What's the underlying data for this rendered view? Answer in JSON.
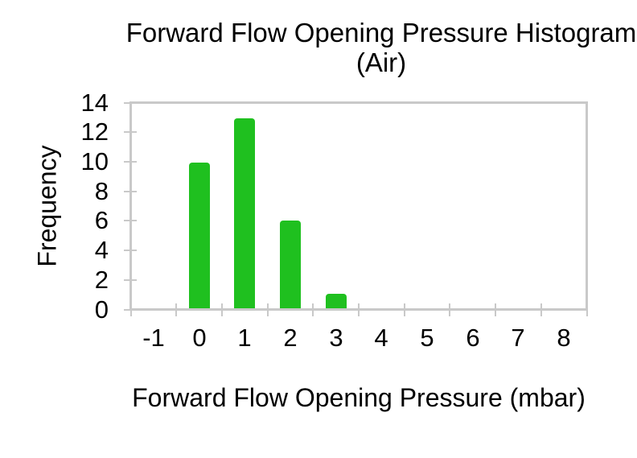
{
  "chart_data": {
    "type": "bar",
    "title": "Forward Flow Opening Pressure Histogram (Air)",
    "title_line1": "Forward Flow Opening Pressure Histogram",
    "title_line2": "(Air)",
    "xlabel": "Forward Flow Opening Pressure (mbar)",
    "ylabel": "Frequency",
    "categories": [
      "-1",
      "0",
      "1",
      "2",
      "3",
      "4",
      "5",
      "6",
      "7",
      "8"
    ],
    "values": [
      0,
      10,
      13,
      6,
      1,
      0,
      0,
      0,
      0,
      0
    ],
    "ylim": [
      0,
      14
    ],
    "ytick_step": 2,
    "ytick_labels": [
      "0",
      "2",
      "4",
      "6",
      "8",
      "10",
      "12",
      "14"
    ],
    "grid": false,
    "legend": false,
    "bar_color": "#1fc01f",
    "axis_color": "#c9c9c9",
    "text_color": "#000000",
    "background_color": "#ffffff"
  }
}
